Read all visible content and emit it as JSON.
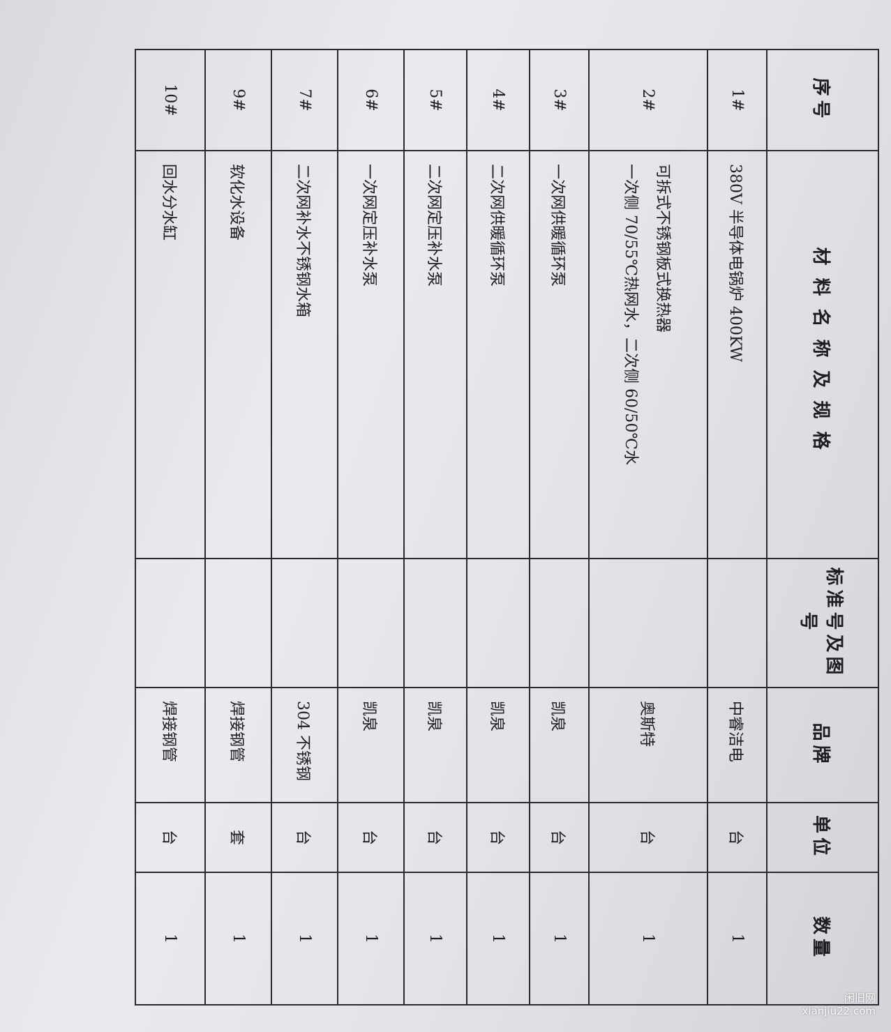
{
  "headers": [
    "序号",
    "材料名称及规格",
    "标准号及图号",
    "品牌",
    "单位",
    "数量"
  ],
  "rows": [
    {
      "no": "1#",
      "name": "380V 半导体电锅炉 400KW",
      "spec": "",
      "std": "",
      "brand": "中睿洁电",
      "unit": "台",
      "qty": "1"
    },
    {
      "no": "2#",
      "name": "可拆式不锈钢板式换热器",
      "spec": "一次侧 70/55℃热网水，二次侧 60/50℃水",
      "std": "",
      "brand": "奥斯特",
      "unit": "台",
      "qty": "1"
    },
    {
      "no": "3#",
      "name": "一次网供暖循环泵",
      "spec": "",
      "std": "",
      "brand": "凯泉",
      "unit": "台",
      "qty": "1"
    },
    {
      "no": "4#",
      "name": "二次网供暖循环泵",
      "spec": "",
      "std": "",
      "brand": "凯泉",
      "unit": "台",
      "qty": "1"
    },
    {
      "no": "5#",
      "name": "二次网定压补水泵",
      "spec": "",
      "std": "",
      "brand": "凯泉",
      "unit": "台",
      "qty": "1"
    },
    {
      "no": "6#",
      "name": "一次网定压补水泵",
      "spec": "",
      "std": "",
      "brand": "凯泉",
      "unit": "台",
      "qty": "1"
    },
    {
      "no": "7#",
      "name": "二次网补水不锈钢水箱",
      "spec": "",
      "std": "",
      "brand": "304 不锈钢",
      "unit": "台",
      "qty": "1"
    },
    {
      "no": "9#",
      "name": "软化水设备",
      "spec": "",
      "std": "",
      "brand": "焊接钢管",
      "unit": "套",
      "qty": "1"
    },
    {
      "no": "10#",
      "name": "回水分水缸",
      "spec": "",
      "std": "",
      "brand": "焊接钢管",
      "unit": "台",
      "qty": "1"
    }
  ],
  "watermark": {
    "line1": "闲旧网",
    "line2": "xianjiu22.com"
  }
}
